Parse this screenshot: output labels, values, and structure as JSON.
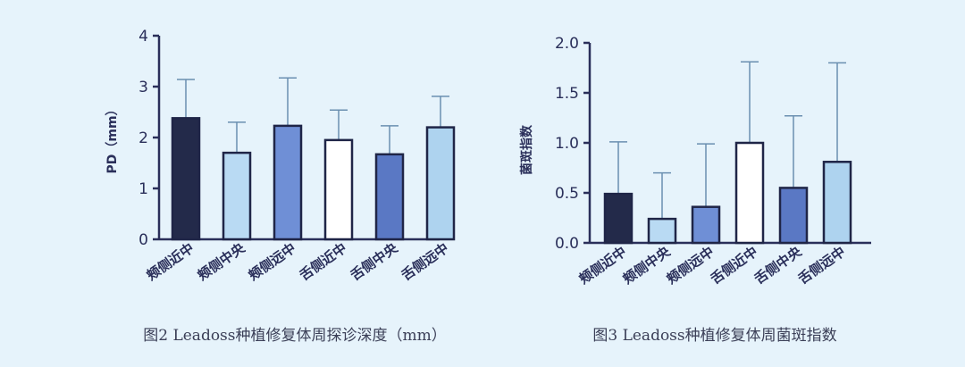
{
  "chart_data": [
    {
      "type": "bar",
      "ylabel": "PD（mm）",
      "ylim": [
        0,
        4
      ],
      "yticks": [
        "0",
        "1",
        "2",
        "3",
        "4"
      ],
      "categories": [
        "颊侧近中",
        "颊侧中央",
        "颊侧远中",
        "舌侧近中",
        "舌侧中央",
        "舌侧远中"
      ],
      "values": [
        2.38,
        1.7,
        2.23,
        1.95,
        1.67,
        2.2
      ],
      "error_upper": [
        3.14,
        2.3,
        3.17,
        2.54,
        2.23,
        2.81
      ],
      "colors": [
        "#232a4a",
        "#b9daf3",
        "#6f8fd6",
        "#ffffff",
        "#5a78c4",
        "#aed3ef"
      ],
      "caption": "图2 Leadoss种植修复体周探诊深度（mm）"
    },
    {
      "type": "bar",
      "ylabel": "菌斑指数",
      "ylim": [
        0,
        2
      ],
      "yticks": [
        "0.0",
        "0.5",
        "1.0",
        "1.5",
        "2.0"
      ],
      "categories": [
        "颊侧近中",
        "颊侧中央",
        "颊侧远中",
        "舌侧近中",
        "舌侧中央",
        "舌侧远中"
      ],
      "values": [
        0.49,
        0.24,
        0.36,
        1.0,
        0.55,
        0.81
      ],
      "error_upper": [
        1.01,
        0.7,
        0.99,
        1.81,
        1.27,
        1.8
      ],
      "colors": [
        "#232a4a",
        "#b9daf3",
        "#6f8fd6",
        "#ffffff",
        "#5a78c4",
        "#aed3ef"
      ],
      "caption": "图3 Leadoss种植修复体周菌斑指数"
    }
  ]
}
